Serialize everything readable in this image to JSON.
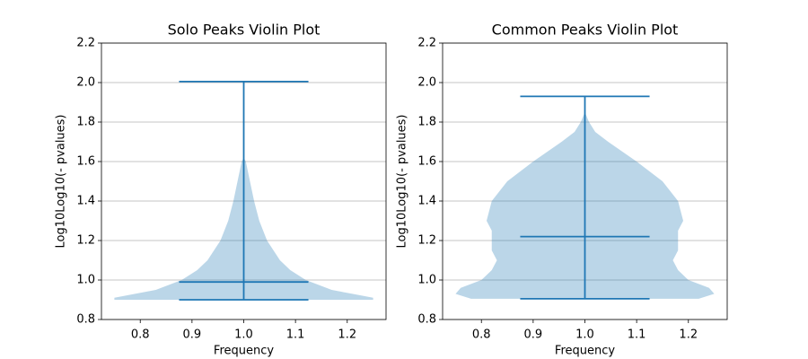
{
  "chart_data": [
    {
      "type": "violin",
      "title": "Solo Peaks Violin Plot",
      "x_label": "Frequency",
      "y_label": "Log10Log10(- pvalues)",
      "position": 1.0,
      "min": 0.9,
      "median": 0.99,
      "max": 2.005,
      "color": "#1f77b4",
      "density": {
        "y": [
          0.9,
          0.91,
          0.93,
          0.95,
          1.0,
          1.05,
          1.1,
          1.2,
          1.3,
          1.35,
          1.4,
          1.5,
          1.55,
          1.6,
          1.62
        ],
        "half_width": [
          0.25,
          0.25,
          0.21,
          0.17,
          0.12,
          0.09,
          0.07,
          0.045,
          0.03,
          0.025,
          0.02,
          0.012,
          0.008,
          0.004,
          0
        ]
      },
      "xlim": [
        0.725,
        1.275
      ],
      "xticks": [
        0.8,
        0.9,
        {
          "value": 1.0,
          "label": "1.0"
        },
        1.1,
        1.2
      ],
      "ylim": [
        0.8,
        2.2
      ],
      "yticks": [
        0.8,
        {
          "value": 1.0,
          "label": "1.0"
        },
        1.2,
        1.4,
        1.6,
        1.8,
        {
          "value": 2.0,
          "label": "2.0"
        },
        2.2
      ],
      "grid": true
    },
    {
      "type": "violin",
      "title": "Common Peaks Violin Plot",
      "x_label": "Frequency",
      "y_label": "Log10Log10(- pvalues)",
      "position": 1.0,
      "min": 0.905,
      "median": 1.22,
      "max": 1.93,
      "color": "#1f77b4",
      "density": {
        "y": [
          0.905,
          0.93,
          0.96,
          1.0,
          1.05,
          1.1,
          1.15,
          1.2,
          1.25,
          1.3,
          1.4,
          1.5,
          1.6,
          1.7,
          1.75,
          1.8,
          1.85
        ],
        "half_width": [
          0.22,
          0.25,
          0.24,
          0.2,
          0.18,
          0.17,
          0.18,
          0.18,
          0.18,
          0.19,
          0.18,
          0.15,
          0.1,
          0.045,
          0.02,
          0.008,
          0
        ]
      },
      "xlim": [
        0.725,
        1.275
      ],
      "xticks": [
        0.8,
        0.9,
        {
          "value": 1.0,
          "label": "1.0"
        },
        1.1,
        1.2
      ],
      "ylim": [
        0.8,
        2.2
      ],
      "yticks": [
        0.8,
        {
          "value": 1.0,
          "label": "1.0"
        },
        1.2,
        1.4,
        1.6,
        1.8,
        {
          "value": 2.0,
          "label": "2.0"
        },
        2.2
      ],
      "grid": true
    }
  ]
}
